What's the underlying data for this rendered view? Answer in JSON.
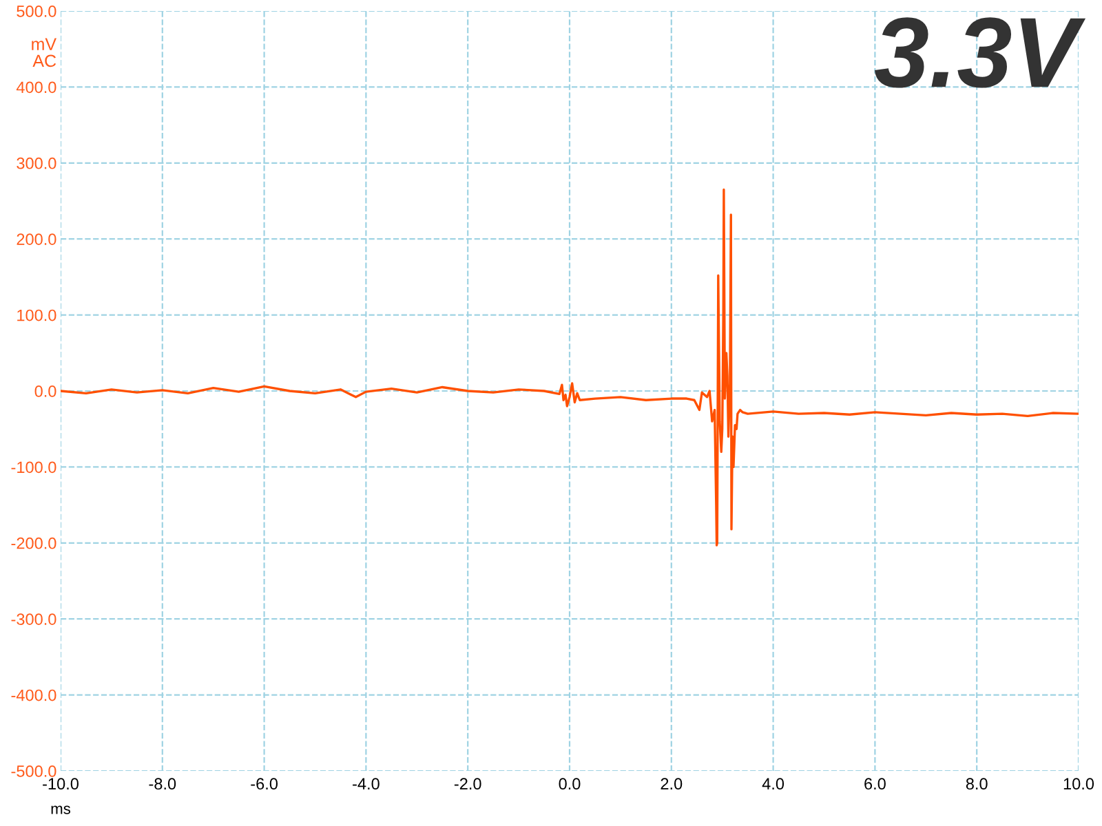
{
  "chart_data": {
    "type": "line",
    "title": "3.3V",
    "xlabel": "ms",
    "ylabel": "mV\nAC",
    "x": [
      -10.0,
      -9.5,
      -9.0,
      -8.5,
      -8.0,
      -7.5,
      -7.0,
      -6.5,
      -6.0,
      -5.5,
      -5.0,
      -4.5,
      -4.2,
      -4.0,
      -3.5,
      -3.0,
      -2.5,
      -2.0,
      -1.5,
      -1.0,
      -0.5,
      -0.2,
      -0.15,
      -0.12,
      -0.08,
      -0.05,
      0.0,
      0.05,
      0.1,
      0.15,
      0.2,
      0.5,
      1.0,
      1.5,
      2.0,
      2.3,
      2.45,
      2.55,
      2.6,
      2.7,
      2.75,
      2.8,
      2.85,
      2.88,
      2.89,
      2.9,
      2.92,
      2.95,
      2.98,
      3.0,
      3.02,
      3.03,
      3.05,
      3.08,
      3.1,
      3.12,
      3.15,
      3.17,
      3.18,
      3.2,
      3.22,
      3.25,
      3.28,
      3.3,
      3.35,
      3.4,
      3.5,
      4.0,
      4.5,
      5.0,
      5.5,
      6.0,
      6.5,
      7.0,
      7.5,
      8.0,
      8.5,
      9.0,
      9.5,
      10.0
    ],
    "series": [
      {
        "color": "#ff5000",
        "values": [
          0,
          -3,
          2,
          -2,
          1,
          -3,
          4,
          -1,
          6,
          0,
          -3,
          2,
          -8,
          -1,
          3,
          -2,
          5,
          0,
          -2,
          2,
          0,
          -4,
          8,
          -12,
          -5,
          -20,
          -8,
          10,
          -15,
          -3,
          -12,
          -10,
          -8,
          -12,
          -10,
          -10,
          -12,
          -25,
          -2,
          -8,
          0,
          -40,
          -25,
          -150,
          -203,
          -200,
          152,
          -40,
          -80,
          -50,
          100,
          265,
          -10,
          50,
          20,
          -60,
          10,
          232,
          -182,
          -60,
          -100,
          -45,
          -50,
          -30,
          -25,
          -28,
          -30,
          -27,
          -30,
          -29,
          -31,
          -28,
          -30,
          -32,
          -29,
          -31,
          -30,
          -33,
          -29,
          -30
        ]
      }
    ],
    "xlim": [
      -10,
      10
    ],
    "ylim": [
      -500,
      500
    ],
    "xticks": [
      {
        "value": -10,
        "label": "-10.0"
      },
      {
        "value": -8,
        "label": "-8.0"
      },
      {
        "value": -6,
        "label": "-6.0"
      },
      {
        "value": -4,
        "label": "-4.0"
      },
      {
        "value": -2,
        "label": "-2.0"
      },
      {
        "value": 0,
        "label": "0.0"
      },
      {
        "value": 2,
        "label": "2.0"
      },
      {
        "value": 4,
        "label": "4.0"
      },
      {
        "value": 6,
        "label": "6.0"
      },
      {
        "value": 8,
        "label": "8.0"
      },
      {
        "value": 10,
        "label": "10.0"
      }
    ],
    "yticks": [
      {
        "value": -500,
        "label": "-500.0"
      },
      {
        "value": -400,
        "label": "-400.0"
      },
      {
        "value": -300,
        "label": "-300.0"
      },
      {
        "value": -200,
        "label": "-200.0"
      },
      {
        "value": -100,
        "label": "-100.0"
      },
      {
        "value": 0,
        "label": "0.0"
      },
      {
        "value": 100,
        "label": "100.0"
      },
      {
        "value": 200,
        "label": "200.0"
      },
      {
        "value": 300,
        "label": "300.0"
      },
      {
        "value": 400,
        "label": "400.0"
      },
      {
        "value": 500,
        "label": "500.0"
      }
    ],
    "grid": true,
    "marker": "none",
    "line_style": "solid"
  }
}
